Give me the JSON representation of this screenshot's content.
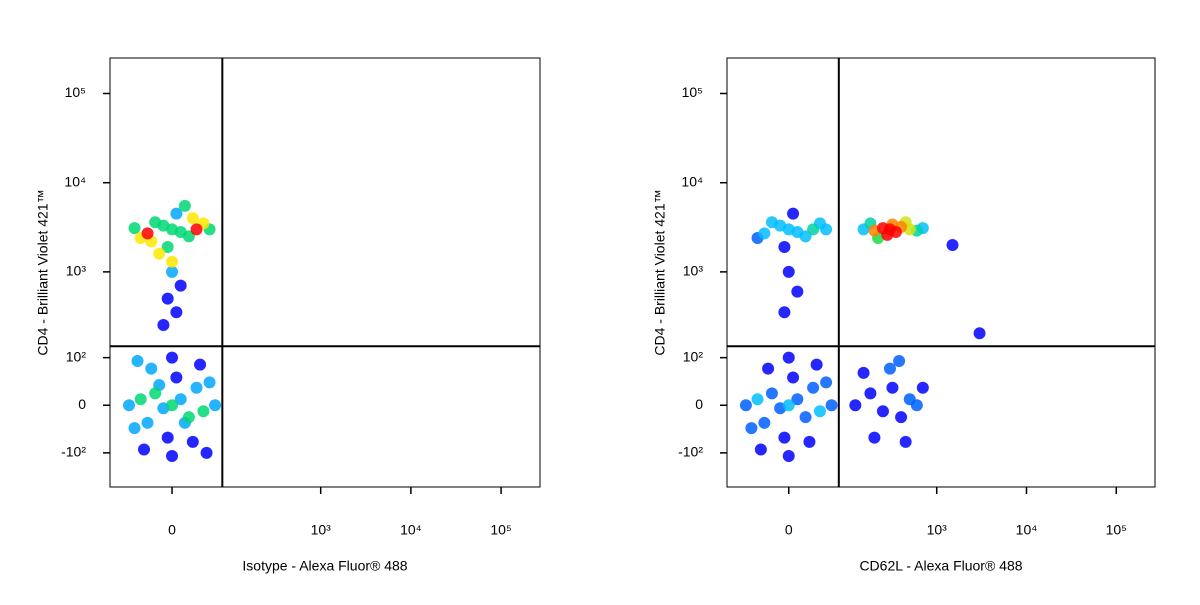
{
  "chart_data": [
    {
      "type": "scatter",
      "x_label": "Isotype - Alexa Fluor® 488",
      "y_label": "CD4 - Brilliant Violet 421™",
      "xlim": [
        -105,
        270000
      ],
      "ylim": [
        -260,
        250000
      ],
      "xticks": [
        0,
        {
          "value": 1000,
          "label": "10³"
        },
        {
          "value": 10000,
          "label": "10⁴"
        },
        {
          "value": 100000,
          "label": "10⁵"
        }
      ],
      "yticks": [
        {
          "value": -100,
          "label": "-10²"
        },
        0,
        {
          "value": 100,
          "label": "10²"
        },
        {
          "value": 1000,
          "label": "10³"
        },
        {
          "value": 10000,
          "label": "10⁴"
        },
        {
          "value": 100000,
          "label": "10⁵"
        }
      ],
      "quadrant_x": 75,
      "quadrant_y": 140,
      "x": [
        0,
        10,
        -10,
        20,
        -20,
        30,
        -30,
        40,
        -40,
        5,
        -5,
        50,
        -50,
        25,
        -25,
        60,
        -60,
        0,
        0,
        35,
        -35,
        45,
        -45,
        15,
        -15,
        0,
        10,
        -10,
        20,
        -20,
        30,
        -30,
        40,
        -40,
        5,
        -5,
        50,
        -50,
        15,
        -15,
        25,
        -25,
        0,
        10,
        -5,
        5,
        -10,
        0
      ],
      "values": [
        0,
        10,
        -5,
        -20,
        20,
        30,
        -30,
        -10,
        10,
        50,
        -60,
        40,
        -40,
        -70,
        70,
        0,
        0,
        100,
        -110,
        80,
        -90,
        -100,
        90,
        -30,
        35,
        3000,
        2800,
        3300,
        2500,
        3600,
        3000,
        2700,
        3500,
        2400,
        4500,
        1900,
        3000,
        3100,
        5500,
        1600,
        4000,
        2200,
        1000,
        700,
        500,
        350,
        250,
        1300
      ]
    },
    {
      "type": "scatter",
      "x_label": "CD62L - Alexa Fluor® 488",
      "y_label": "CD4 - Brilliant Violet 421™",
      "xlim": [
        -105,
        270000
      ],
      "ylim": [
        -260,
        250000
      ],
      "xticks": [
        0,
        {
          "value": 1000,
          "label": "10³"
        },
        {
          "value": 10000,
          "label": "10⁴"
        },
        {
          "value": 100000,
          "label": "10⁵"
        }
      ],
      "yticks": [
        {
          "value": -100,
          "label": "-10²"
        },
        0,
        {
          "value": 100,
          "label": "10²"
        },
        {
          "value": 1000,
          "label": "10³"
        },
        {
          "value": 10000,
          "label": "10⁴"
        },
        {
          "value": 100000,
          "label": "10⁵"
        }
      ],
      "quadrant_x": 75,
      "quadrant_y": 140,
      "x": [
        0,
        10,
        -10,
        20,
        -20,
        30,
        -30,
        40,
        -40,
        5,
        -5,
        50,
        -50,
        25,
        -25,
        60,
        -60,
        0,
        0,
        35,
        -35,
        0,
        10,
        -10,
        20,
        -20,
        30,
        -30,
        40,
        -40,
        5,
        -5,
        50,
        150,
        200,
        250,
        300,
        350,
        400,
        500,
        600,
        180,
        280,
        450,
        220,
        320,
        700,
        120,
        180,
        250,
        320,
        400,
        500,
        600,
        200,
        300,
        450,
        150,
        700,
        380,
        0,
        10,
        -5,
        1500,
        3000
      ],
      "values": [
        0,
        10,
        -5,
        -20,
        20,
        30,
        -30,
        -10,
        10,
        50,
        -60,
        40,
        -40,
        -70,
        70,
        0,
        0,
        100,
        -110,
        80,
        -90,
        3000,
        2800,
        3300,
        2500,
        3600,
        3000,
        2700,
        3500,
        2400,
        4500,
        1900,
        3000,
        3000,
        2900,
        3100,
        3000,
        2800,
        3200,
        3000,
        2900,
        3500,
        2600,
        3600,
        2400,
        3400,
        3100,
        0,
        20,
        -10,
        30,
        -20,
        10,
        0,
        -60,
        70,
        -70,
        60,
        30,
        90,
        1000,
        600,
        350,
        2000,
        200
      ]
    }
  ]
}
